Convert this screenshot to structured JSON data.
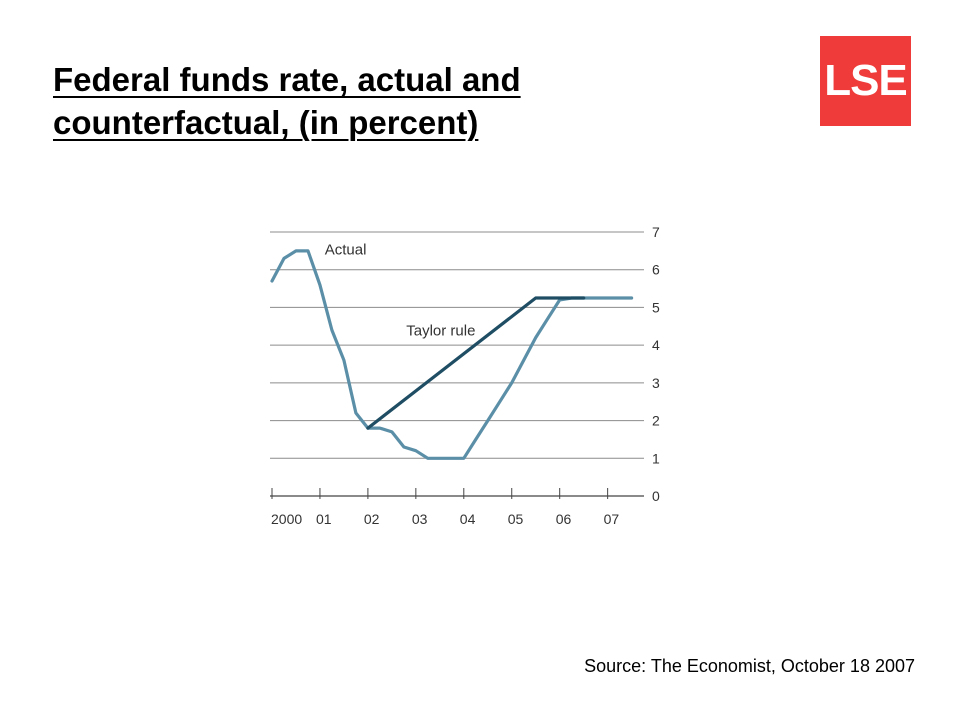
{
  "slide": {
    "title_line1": "Federal funds rate, actual and",
    "title_line2": "counterfactual, (in percent)",
    "logo_text": "LSE",
    "logo_color": "#ef3b39",
    "source": "Source: The Economist, October 18 2007"
  },
  "chart_data": {
    "type": "line",
    "title": "",
    "xlabel": "",
    "ylabel": "",
    "ylim": [
      0,
      7
    ],
    "yticks": [
      0,
      1,
      2,
      3,
      4,
      5,
      6,
      7
    ],
    "ytick_labels": [
      "0",
      "1",
      "2",
      "3",
      "4",
      "5",
      "6",
      "7"
    ],
    "y_axis_side": "right",
    "xlim": [
      2000,
      2007.8
    ],
    "xticks": [
      2000,
      2001,
      2002,
      2003,
      2004,
      2005,
      2006,
      2007
    ],
    "xtick_labels": [
      "2000",
      "01",
      "02",
      "03",
      "04",
      "05",
      "06",
      "07"
    ],
    "grid": "horizontal",
    "series": [
      {
        "name": "Actual",
        "color": "#5b8fa8",
        "x": [
          2000.0,
          2000.25,
          2000.5,
          2000.75,
          2001.0,
          2001.25,
          2001.5,
          2001.75,
          2002.0,
          2002.25,
          2002.5,
          2002.75,
          2003.0,
          2003.25,
          2003.5,
          2003.75,
          2004.0,
          2004.25,
          2004.5,
          2004.75,
          2005.0,
          2005.25,
          2005.5,
          2005.75,
          2006.0,
          2006.25,
          2006.5,
          2006.75,
          2007.0,
          2007.25,
          2007.5
        ],
        "y": [
          5.7,
          6.3,
          6.5,
          6.5,
          5.6,
          4.4,
          3.6,
          2.2,
          1.8,
          1.8,
          1.7,
          1.3,
          1.2,
          1.0,
          1.0,
          1.0,
          1.0,
          1.5,
          2.0,
          2.5,
          3.0,
          3.6,
          4.2,
          4.7,
          5.2,
          5.25,
          5.25,
          5.25,
          5.25,
          5.25,
          5.25
        ]
      },
      {
        "name": "Taylor rule",
        "color": "#1f4e64",
        "x": [
          2002.0,
          2005.5,
          2006.5
        ],
        "y": [
          1.8,
          5.25,
          5.25
        ]
      }
    ]
  }
}
